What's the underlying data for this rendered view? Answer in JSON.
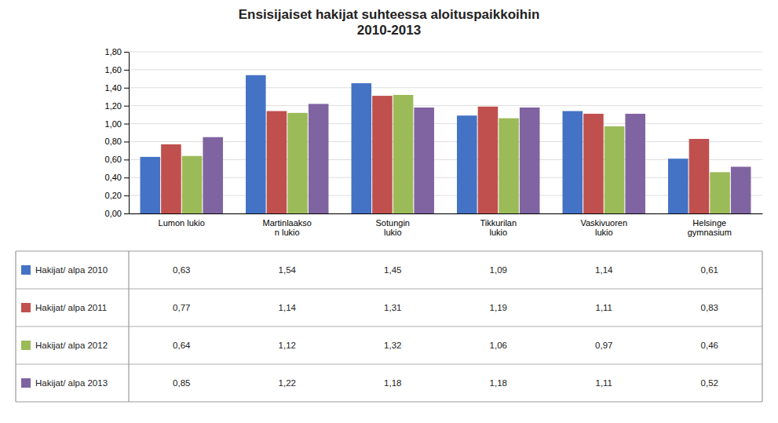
{
  "chart_data": {
    "type": "bar",
    "title": "Ensisijaiset hakijat suhteessa aloituspaikkoihin\n2010-2013",
    "categories": [
      "Lumon lukio",
      "Martinlaakso\nn lukio",
      "Sotungin\nlukio",
      "Tikkurilan\nlukio",
      "Vaskivuoren\nlukio",
      "Helsinge\ngymnasium"
    ],
    "series": [
      {
        "name": "Hakijat/ alpa 2010",
        "color": "#4472C4",
        "values": [
          0.63,
          1.54,
          1.45,
          1.09,
          1.14,
          0.61
        ],
        "value_labels": [
          "0,63",
          "1,54",
          "1,45",
          "1,09",
          "1,14",
          "0,61"
        ]
      },
      {
        "name": "Hakijat/ alpa 2011",
        "color": "#C0504D",
        "values": [
          0.77,
          1.14,
          1.31,
          1.19,
          1.11,
          0.83
        ],
        "value_labels": [
          "0,77",
          "1,14",
          "1,31",
          "1,19",
          "1,11",
          "0,83"
        ]
      },
      {
        "name": "Hakijat/ alpa 2012",
        "color": "#9BBB59",
        "values": [
          0.64,
          1.12,
          1.32,
          1.06,
          0.97,
          0.46
        ],
        "value_labels": [
          "0,64",
          "1,12",
          "1,32",
          "1,06",
          "0,97",
          "0,46"
        ]
      },
      {
        "name": "Hakijat/ alpa 2013",
        "color": "#8064A2",
        "values": [
          0.85,
          1.22,
          1.18,
          1.18,
          1.11,
          0.52
        ],
        "value_labels": [
          "0,85",
          "1,22",
          "1,18",
          "1,18",
          "1,11",
          "0,52"
        ]
      }
    ],
    "ylim": [
      0.0,
      1.8
    ],
    "yticks": [
      {
        "value": 0.0,
        "label": "0,00"
      },
      {
        "value": 0.2,
        "label": "0,20"
      },
      {
        "value": 0.4,
        "label": "0,40"
      },
      {
        "value": 0.6,
        "label": "0,60"
      },
      {
        "value": 0.8,
        "label": "0,80"
      },
      {
        "value": 1.0,
        "label": "1,00"
      },
      {
        "value": 1.2,
        "label": "1,20"
      },
      {
        "value": 1.4,
        "label": "1,40"
      },
      {
        "value": 1.6,
        "label": "1,60"
      },
      {
        "value": 1.8,
        "label": "1,80"
      }
    ],
    "grid": true
  }
}
